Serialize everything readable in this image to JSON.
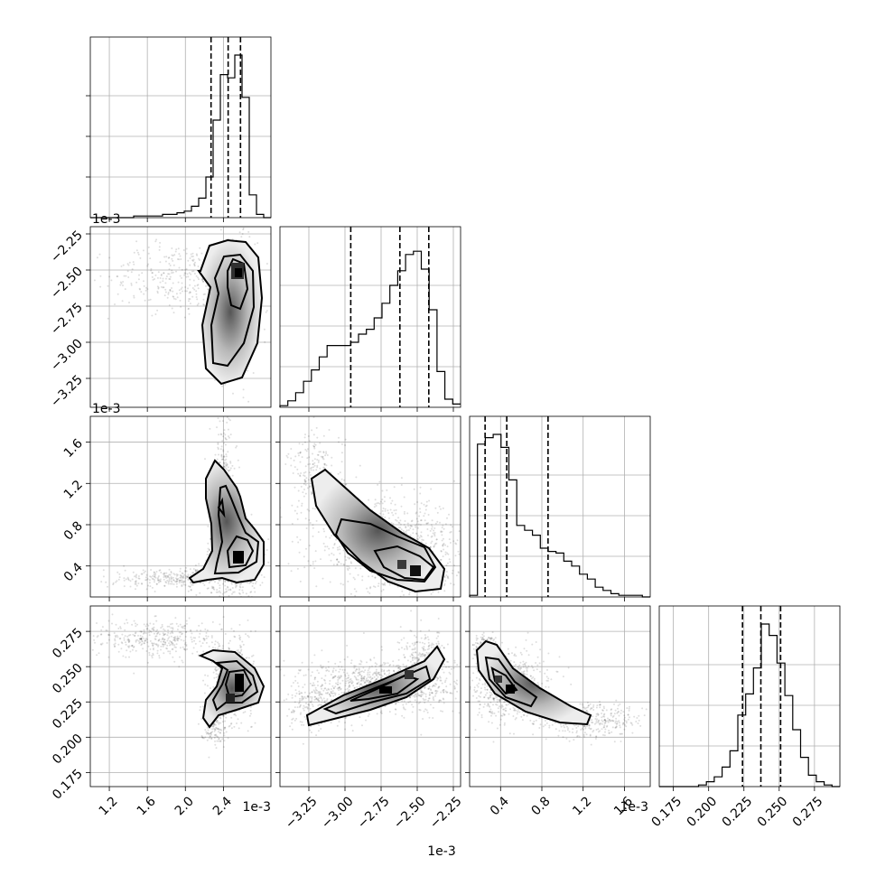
{
  "chart_data": {
    "type": "corner",
    "grid": true,
    "params": [
      {
        "scale_label": "1e-3",
        "range": [
          1.0,
          2.9
        ],
        "ticks": [
          1.2,
          1.6,
          2.0,
          2.4
        ],
        "tick_labels": [
          "1.2",
          "1.6",
          "2.0",
          "2.4"
        ],
        "quantiles": [
          2.27,
          2.45,
          2.58
        ]
      },
      {
        "scale_label": "1e-3",
        "range": [
          -3.45,
          -2.2
        ],
        "ticks": [
          -3.25,
          -3.0,
          -2.75,
          -2.5,
          -2.25
        ],
        "tick_labels": [
          "−3.25",
          "−3.00",
          "−2.75",
          "−2.50",
          "−2.25"
        ],
        "quantiles": [
          -2.96,
          -2.62,
          -2.42
        ]
      },
      {
        "scale_label": "1e-3",
        "range": [
          0.1,
          1.85
        ],
        "ticks": [
          0.4,
          0.8,
          1.2,
          1.6
        ],
        "tick_labels": [
          "0.4",
          "0.8",
          "1.2",
          "1.6"
        ],
        "quantiles": [
          0.25,
          0.46,
          0.86
        ]
      },
      {
        "scale_label": "",
        "range": [
          0.165,
          0.293
        ],
        "ticks": [
          0.175,
          0.2,
          0.225,
          0.25,
          0.275
        ],
        "tick_labels": [
          "0.175",
          "0.200",
          "0.225",
          "0.250",
          "0.275"
        ],
        "quantiles": [
          0.224,
          0.237,
          0.251
        ]
      }
    ],
    "histograms": [
      {
        "param": 0,
        "counts": [
          0,
          0,
          0,
          0,
          0,
          0,
          1,
          1,
          1,
          1,
          2,
          2,
          3,
          4,
          7,
          12,
          25,
          60,
          88,
          86,
          100,
          74,
          14,
          2,
          0
        ]
      },
      {
        "param": 1,
        "counts": [
          1,
          4,
          9,
          16,
          23,
          31,
          38,
          38,
          38,
          40,
          45,
          48,
          55,
          64,
          75,
          84,
          94,
          96,
          85,
          60,
          22,
          5,
          2
        ]
      },
      {
        "param": 2,
        "counts": [
          1,
          94,
          98,
          100,
          92,
          72,
          44,
          41,
          38,
          30,
          28,
          27,
          22,
          19,
          14,
          11,
          6,
          4,
          2,
          1,
          1,
          1,
          0
        ]
      },
      {
        "param": 3,
        "counts": [
          0,
          0,
          0,
          0,
          0,
          1,
          3,
          6,
          12,
          22,
          44,
          57,
          73,
          100,
          93,
          76,
          56,
          35,
          18,
          7,
          3,
          1,
          0
        ]
      }
    ]
  }
}
